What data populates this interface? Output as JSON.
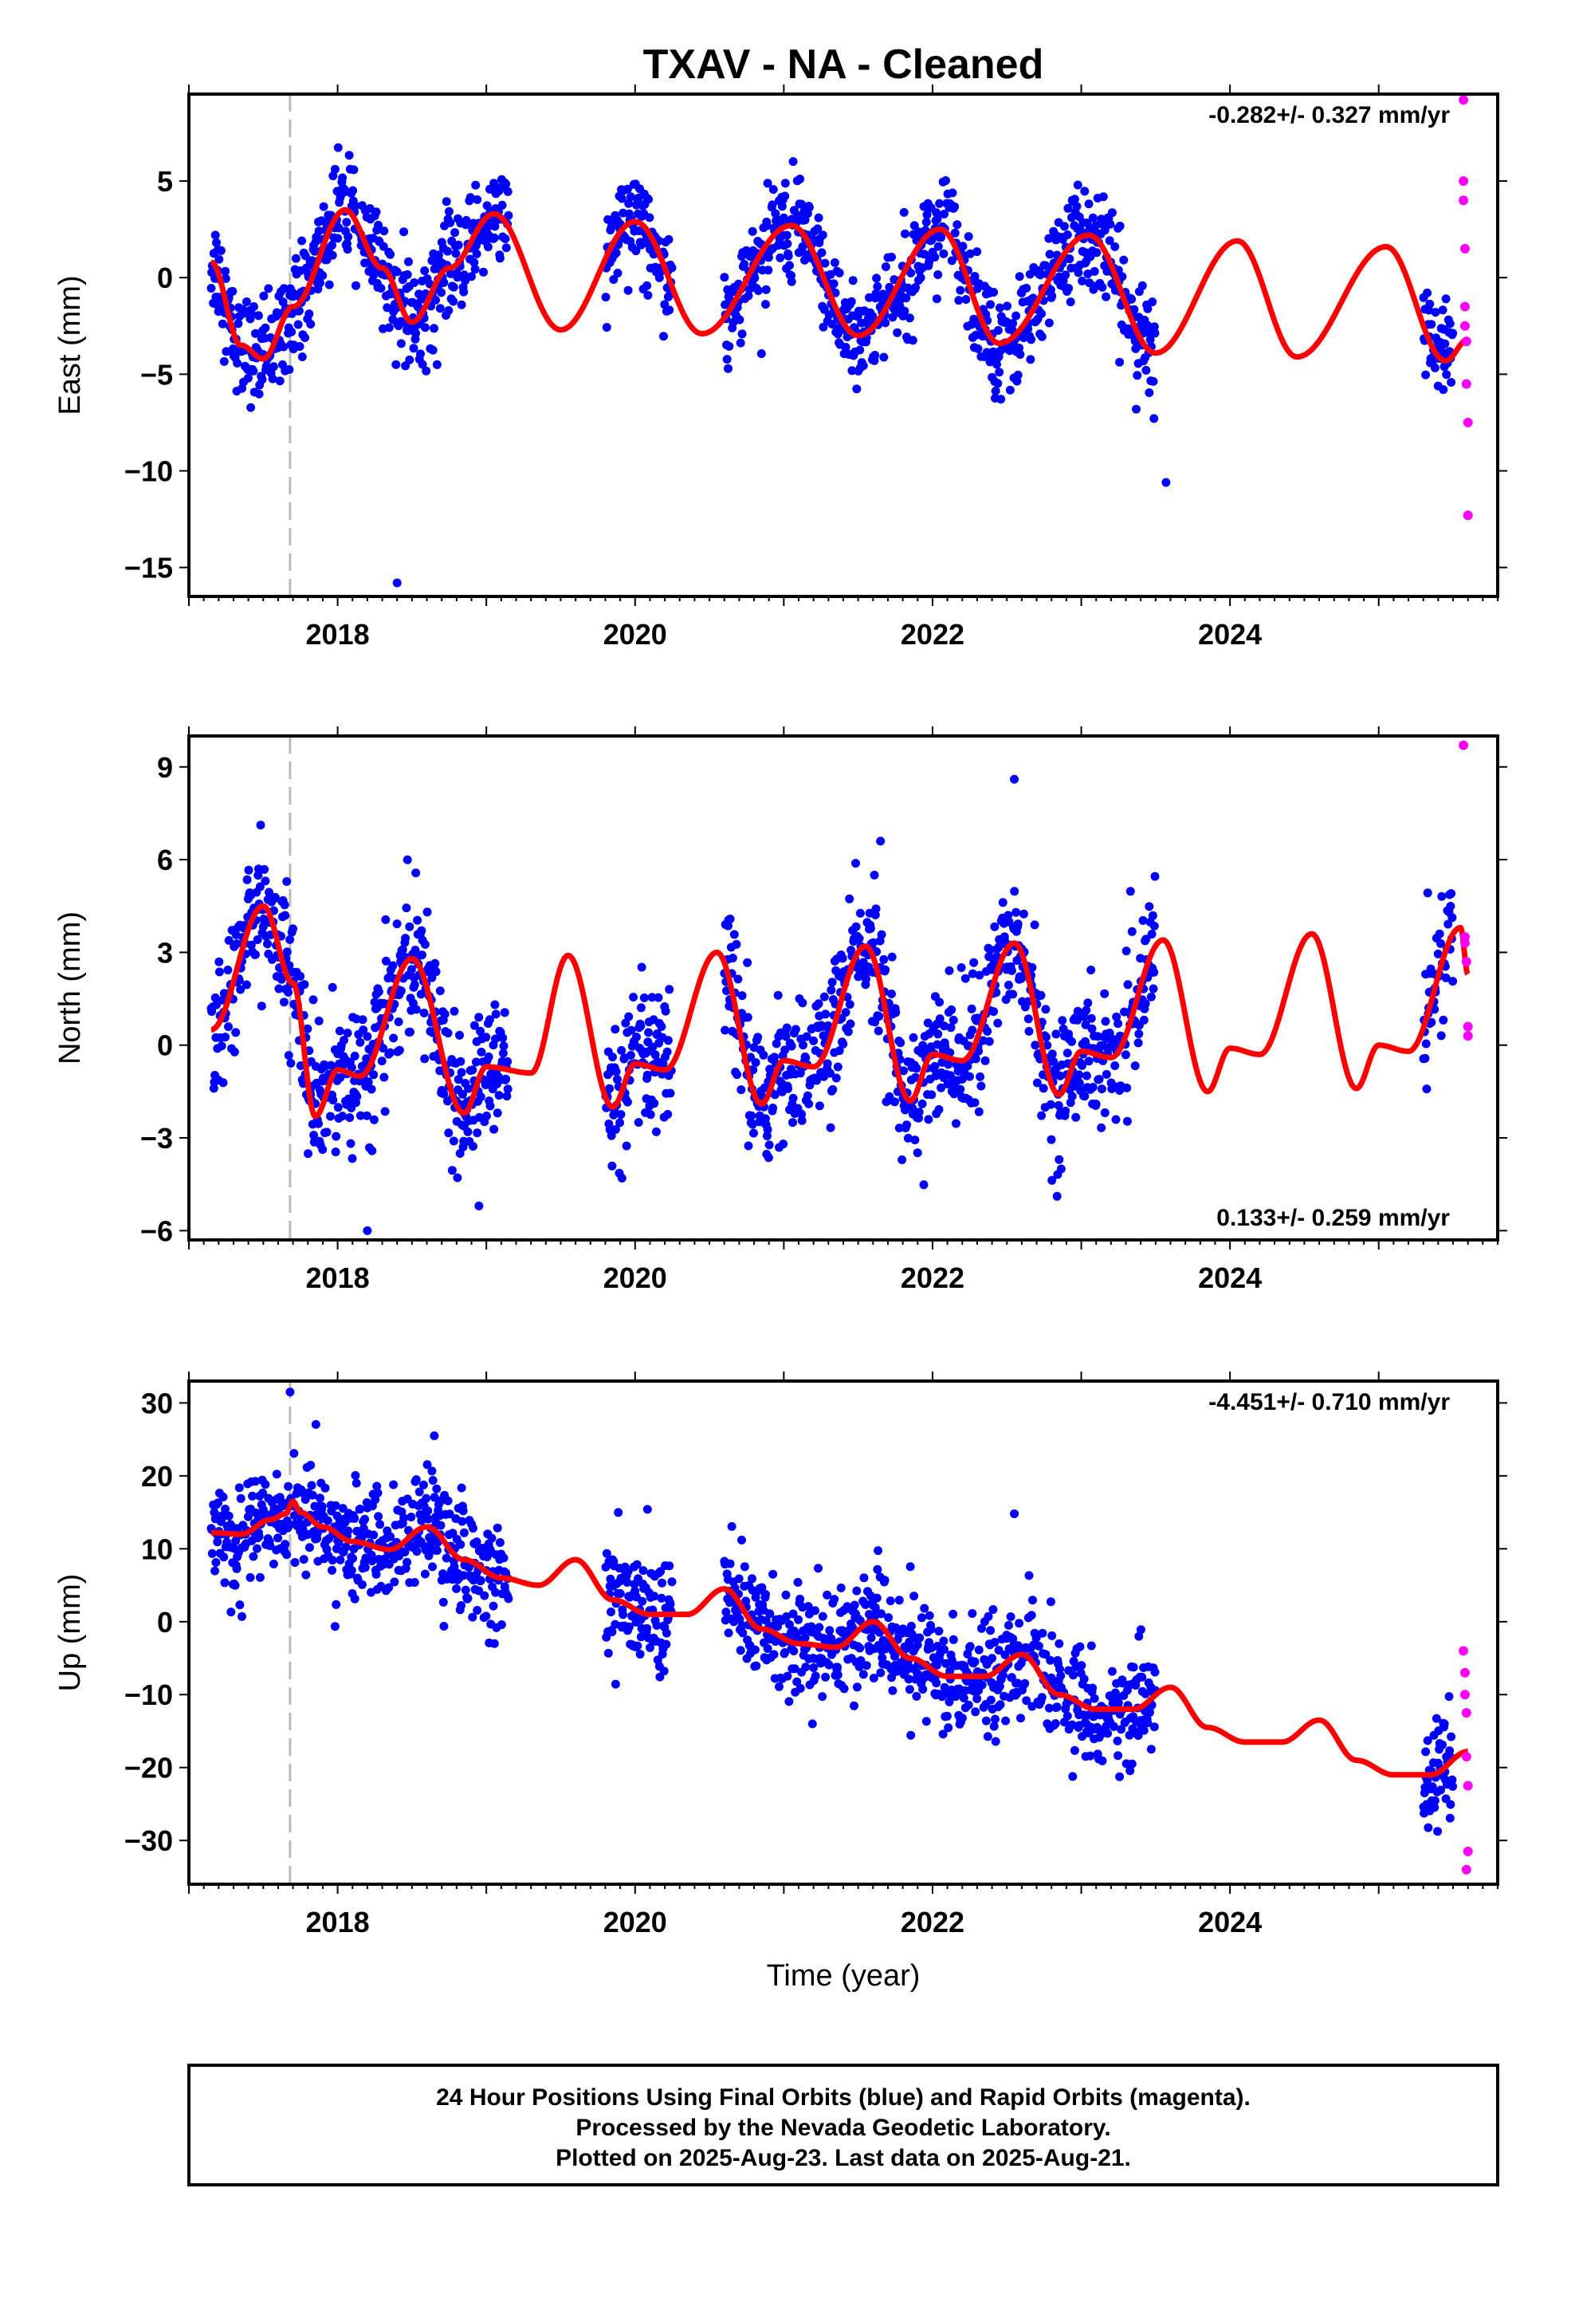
{
  "title": "TXAV  - NA - Cleaned",
  "xlabel": "Time (year)",
  "x_tick_labels": [
    "2018",
    "2020",
    "2022",
    "2024"
  ],
  "footer": {
    "line1": "24 Hour Positions Using Final Orbits (blue) and Rapid Orbits (magenta).",
    "line2": "Processed by the Nevada Geodetic Laboratory.",
    "line3": "Plotted on 2025-Aug-23. Last data on 2025-Aug-21."
  },
  "colors": {
    "final_points": "#0000ff",
    "rapid_points": "#ff00ff",
    "model_curve": "#ff0000",
    "event_line": "#bbbbbb"
  },
  "chart_data": [
    {
      "type": "scatter",
      "component": "east",
      "ylabel": "East (mm)",
      "rate_label": "-0.282+/- 0.327 mm/yr",
      "xlim": [
        2017.0,
        2025.8
      ],
      "ylim": [
        -16.5,
        9.5
      ],
      "y_ticks": [
        5,
        0,
        -5,
        -10,
        -15
      ],
      "y_tick_labels": [
        "5",
        "0",
        "−10",
        "−15"
      ],
      "y_tick_labels_all": [
        "5",
        "0",
        "−5",
        "−10",
        "−15"
      ],
      "event_line_x": 2017.68,
      "data_gaps": [
        [
          2019.15,
          2019.8
        ],
        [
          2020.25,
          2020.6
        ],
        [
          2023.5,
          2025.3
        ]
      ],
      "final_data_range": [
        2017.15,
        2025.5
      ],
      "annual_amplitude_mm": 3.0,
      "scatter_mm": 1.3,
      "model_curve": {
        "x": [
          2017.15,
          2017.35,
          2017.5,
          2017.7,
          2018.05,
          2018.3,
          2018.5,
          2018.75,
          2019.05,
          2019.5,
          2020.0,
          2020.45,
          2021.05,
          2021.5,
          2022.05,
          2022.45,
          2023.05,
          2023.5,
          2024.05,
          2024.45,
          2025.05,
          2025.45,
          2025.6
        ],
        "y": [
          0.8,
          -3.5,
          -4.2,
          -1.5,
          3.5,
          0.5,
          -2.3,
          0.5,
          3.3,
          -2.7,
          2.9,
          -2.9,
          2.7,
          -3.0,
          2.5,
          -3.4,
          2.2,
          -3.9,
          1.9,
          -4.1,
          1.6,
          -4.3,
          -3.2
        ]
      },
      "rapid_points": {
        "x": [
          2025.57,
          2025.57,
          2025.57,
          2025.58,
          2025.58,
          2025.58,
          2025.59,
          2025.59,
          2025.6,
          2025.6
        ],
        "y": [
          9.2,
          5.0,
          4.0,
          1.5,
          -1.5,
          -2.5,
          -3.3,
          -5.5,
          -7.5,
          -12.3
        ]
      },
      "outliers": {
        "x": [
          2018.4,
          2023.57
        ],
        "y": [
          -15.8,
          -10.6
        ]
      }
    },
    {
      "type": "scatter",
      "component": "north",
      "ylabel": "North (mm)",
      "rate_label": "0.133+/- 0.259 mm/yr",
      "xlim": [
        2017.0,
        2025.8
      ],
      "ylim": [
        -6.3,
        10.0
      ],
      "y_ticks": [
        9,
        6,
        3,
        0,
        -3,
        -6
      ],
      "y_tick_labels_all": [
        "9",
        "6",
        "3",
        "0",
        "−3",
        "−6"
      ],
      "event_line_x": 2017.68,
      "data_gaps": [
        [
          2019.15,
          2019.8
        ],
        [
          2020.25,
          2020.6
        ],
        [
          2023.5,
          2025.3
        ]
      ],
      "final_data_range": [
        2017.15,
        2025.5
      ],
      "scatter_mm": 1.1,
      "model_curve": {
        "x": [
          2017.15,
          2017.5,
          2017.7,
          2017.85,
          2018.0,
          2018.15,
          2018.5,
          2018.85,
          2019.0,
          2019.3,
          2019.55,
          2019.85,
          2020.0,
          2020.2,
          2020.55,
          2020.85,
          2021.0,
          2021.2,
          2021.55,
          2021.85,
          2022.0,
          2022.2,
          2022.55,
          2022.85,
          2023.0,
          2023.2,
          2023.55,
          2023.85,
          2024.0,
          2024.2,
          2024.55,
          2024.85,
          2025.0,
          2025.2,
          2025.55,
          2025.6
        ],
        "y": [
          0.5,
          4.5,
          2.0,
          -2.3,
          -0.8,
          -1.0,
          2.8,
          -2.2,
          -0.7,
          -0.9,
          2.9,
          -2.0,
          -0.6,
          -0.8,
          3.0,
          -1.9,
          -0.5,
          -0.7,
          3.2,
          -1.8,
          -0.3,
          -0.5,
          3.3,
          -1.6,
          -0.2,
          -0.4,
          3.4,
          -1.5,
          -0.1,
          -0.3,
          3.6,
          -1.4,
          0.0,
          -0.2,
          3.8,
          2.3
        ]
      },
      "rapid_points": {
        "x": [
          2025.57,
          2025.58,
          2025.59,
          2025.6,
          2025.6,
          2025.58
        ],
        "y": [
          9.7,
          3.3,
          2.7,
          0.6,
          0.3,
          3.5
        ]
      },
      "outliers": {
        "x": [
          2018.2,
          2021.65,
          2022.55,
          2018.95
        ],
        "y": [
          -6.0,
          6.6,
          8.6,
          -5.2
        ]
      }
    },
    {
      "type": "scatter",
      "component": "up",
      "ylabel": "Up (mm)",
      "rate_label": "-4.451+/- 0.710 mm/yr",
      "xlim": [
        2017.0,
        2025.8
      ],
      "ylim": [
        -36,
        33
      ],
      "y_ticks": [
        30,
        20,
        10,
        0,
        -10,
        -20,
        -30
      ],
      "y_tick_labels_all": [
        "30",
        "20",
        "10",
        "0",
        "−10",
        "−20",
        "−30"
      ],
      "event_line_x": 2017.68,
      "data_gaps": [
        [
          2019.15,
          2019.8
        ],
        [
          2020.25,
          2020.6
        ],
        [
          2023.5,
          2025.3
        ]
      ],
      "final_data_range": [
        2017.15,
        2025.5
      ],
      "scatter_mm": 3.8,
      "model_curve": {
        "x": [
          2017.15,
          2017.35,
          2017.55,
          2017.65,
          2017.7,
          2017.75,
          2017.9,
          2018.1,
          2018.35,
          2018.6,
          2018.85,
          2019.1,
          2019.35,
          2019.6,
          2019.85,
          2020.1,
          2020.35,
          2020.6,
          2020.85,
          2021.1,
          2021.35,
          2021.6,
          2021.85,
          2022.1,
          2022.35,
          2022.6,
          2022.85,
          2023.1,
          2023.35,
          2023.6,
          2023.85,
          2024.1,
          2024.35,
          2024.6,
          2024.85,
          2025.1,
          2025.35,
          2025.6
        ],
        "y": [
          12.2,
          12.0,
          14.0,
          14.8,
          16.5,
          15.0,
          13.0,
          11.0,
          9.9,
          13.0,
          8.5,
          6.0,
          5.0,
          8.5,
          3.0,
          1.0,
          1.0,
          4.5,
          -1.0,
          -3.0,
          -3.5,
          0.0,
          -5.0,
          -7.5,
          -7.5,
          -4.5,
          -10.0,
          -12.0,
          -12.0,
          -9.0,
          -14.5,
          -16.5,
          -16.5,
          -13.5,
          -19.0,
          -21.0,
          -21.0,
          -17.8
        ]
      },
      "rapid_points": {
        "x": [
          2025.57,
          2025.58,
          2025.58,
          2025.59,
          2025.59,
          2025.6,
          2025.6,
          2025.59
        ],
        "y": [
          -4.0,
          -7.0,
          -10.0,
          -12.5,
          -18.5,
          -22.5,
          -31.5,
          -34.0
        ]
      },
      "outliers": {
        "x": [
          2017.68,
          2018.65,
          2022.55
        ],
        "y": [
          31.5,
          25.5,
          14.8
        ]
      }
    }
  ]
}
